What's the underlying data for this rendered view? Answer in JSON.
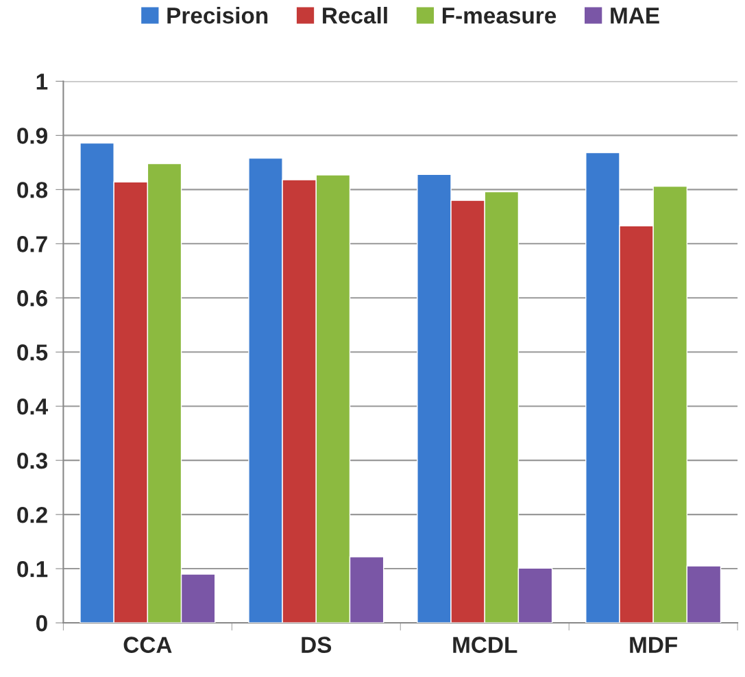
{
  "chart_data": {
    "type": "bar",
    "categories": [
      "CCA",
      "DS",
      "MCDL",
      "MDF"
    ],
    "series": [
      {
        "name": "Precision",
        "color": "#3a7bd0",
        "values": [
          0.886,
          0.858,
          0.828,
          0.868
        ]
      },
      {
        "name": "Recall",
        "color": "#c53a38",
        "values": [
          0.814,
          0.818,
          0.78,
          0.733
        ]
      },
      {
        "name": "F-measure",
        "color": "#8cba40",
        "values": [
          0.848,
          0.827,
          0.796,
          0.806
        ]
      },
      {
        "name": "MAE",
        "color": "#7a56a6",
        "values": [
          0.09,
          0.122,
          0.101,
          0.105
        ]
      }
    ],
    "ylim": [
      0,
      1
    ],
    "yticks": [
      0,
      0.1,
      0.2,
      0.3,
      0.4,
      0.5,
      0.6,
      0.7,
      0.8,
      0.9,
      1
    ],
    "grid": "y",
    "legend": "top"
  }
}
